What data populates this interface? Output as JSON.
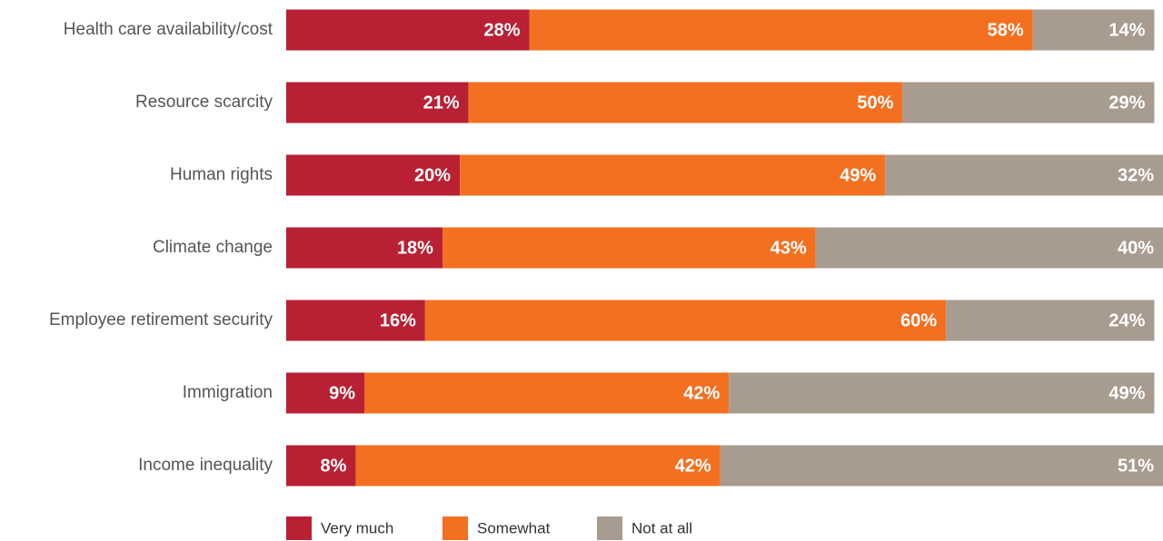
{
  "chart_data": {
    "type": "stacked-bar-horizontal",
    "categories": [
      "Health care availability/cost",
      "Resource scarcity",
      "Human rights",
      "Climate change",
      "Employee retirement security",
      "Immigration",
      "Income inequality"
    ],
    "series": [
      {
        "name": "Very much",
        "color": "#b92034",
        "values": [
          28,
          21,
          20,
          18,
          16,
          9,
          8
        ],
        "value_labels": [
          "28%",
          "21%",
          "20%",
          "18%",
          "16%",
          "9%",
          "8%"
        ]
      },
      {
        "name": "Somewhat",
        "color": "#f37021",
        "values": [
          58,
          50,
          49,
          43,
          60,
          42,
          42
        ],
        "value_labels": [
          "58%",
          "50%",
          "49%",
          "43%",
          "60%",
          "42%",
          "42%"
        ]
      },
      {
        "name": "Not at all",
        "color": "#a89b8f",
        "values": [
          14,
          29,
          32,
          40,
          24,
          49,
          51
        ],
        "value_labels": [
          "14%",
          "29%",
          "32%",
          "40%",
          "24%",
          "49%",
          "51%"
        ]
      }
    ],
    "xlim": [
      0,
      101
    ]
  }
}
